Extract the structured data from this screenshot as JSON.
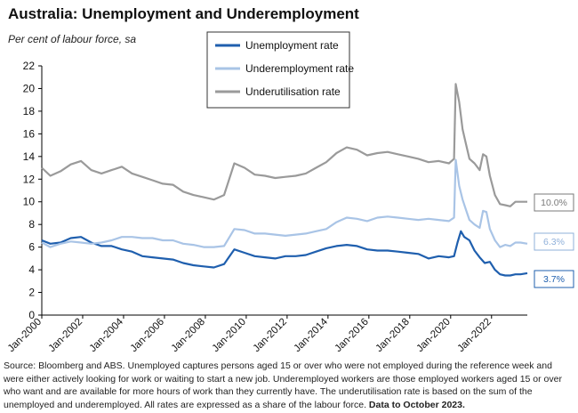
{
  "title": "Australia: Unemployment and Underemployment",
  "subtitle": "Per cent of labour force, sa",
  "source_text": "Source: Bloomberg and ABS. Unemployed captures persons aged 15 or over who were not employed during the reference week and were either actively looking for work or waiting to start a new job.  Underemployed workers are those employed workers aged 15 or over who want and are available for more hours of work than they currently have.  The underutilisation rate is based on the sum of the unemployed and underemployed. All rates are expressed as a share of the labour force.",
  "source_bold": "Data to October 2023.",
  "chart_data": {
    "type": "line",
    "title": "Australia: Unemployment and Underemployment",
    "ylabel": "",
    "xlabel": "",
    "ylim": [
      0,
      22
    ],
    "yticks": [
      0,
      2,
      4,
      6,
      8,
      10,
      12,
      14,
      16,
      18,
      20,
      22
    ],
    "xlim": [
      "2000-01",
      "2023-10"
    ],
    "xticks": [
      "Jan-2000",
      "Jan-2002",
      "Jan-2004",
      "Jan-2006",
      "Jan-2008",
      "Jan-2010",
      "Jan-2012",
      "Jan-2014",
      "Jan-2016",
      "Jan-2018",
      "Jan-2020",
      "Jan-2022"
    ],
    "grid": false,
    "legend_position": "top-center",
    "colors": {
      "unemployment": "#1f5fae",
      "underemployment": "#a9c4e6",
      "underutilisation": "#9a9a9a"
    },
    "end_labels": [
      "10.0%",
      "6.3%",
      "3.7%"
    ],
    "series": [
      {
        "name": "Unemployment rate",
        "color": "#1f5fae",
        "x": [
          "2000-01",
          "2000-06",
          "2000-12",
          "2001-06",
          "2001-12",
          "2002-06",
          "2002-12",
          "2003-06",
          "2003-12",
          "2004-06",
          "2004-12",
          "2005-06",
          "2005-12",
          "2006-06",
          "2006-12",
          "2007-06",
          "2007-12",
          "2008-06",
          "2008-12",
          "2009-06",
          "2009-12",
          "2010-06",
          "2010-12",
          "2011-06",
          "2011-12",
          "2012-06",
          "2012-12",
          "2013-06",
          "2013-12",
          "2014-06",
          "2014-12",
          "2015-06",
          "2015-12",
          "2016-06",
          "2016-12",
          "2017-06",
          "2017-12",
          "2018-06",
          "2018-12",
          "2019-06",
          "2019-12",
          "2020-03",
          "2020-05",
          "2020-07",
          "2020-09",
          "2020-12",
          "2021-03",
          "2021-06",
          "2021-09",
          "2021-12",
          "2022-03",
          "2022-06",
          "2022-09",
          "2022-12",
          "2023-03",
          "2023-06",
          "2023-10"
        ],
        "values": [
          6.6,
          6.3,
          6.4,
          6.8,
          6.9,
          6.4,
          6.1,
          6.1,
          5.8,
          5.6,
          5.2,
          5.1,
          5.0,
          4.9,
          4.6,
          4.4,
          4.3,
          4.2,
          4.5,
          5.8,
          5.5,
          5.2,
          5.1,
          5.0,
          5.2,
          5.2,
          5.3,
          5.6,
          5.9,
          6.1,
          6.2,
          6.1,
          5.8,
          5.7,
          5.7,
          5.6,
          5.5,
          5.4,
          5.0,
          5.2,
          5.1,
          5.2,
          6.4,
          7.4,
          6.9,
          6.6,
          5.7,
          5.1,
          4.6,
          4.7,
          4.0,
          3.6,
          3.5,
          3.5,
          3.6,
          3.6,
          3.7
        ]
      },
      {
        "name": "Underemployment rate",
        "color": "#a9c4e6",
        "x": [
          "2000-01",
          "2000-06",
          "2000-12",
          "2001-06",
          "2001-12",
          "2002-06",
          "2002-12",
          "2003-06",
          "2003-12",
          "2004-06",
          "2004-12",
          "2005-06",
          "2005-12",
          "2006-06",
          "2006-12",
          "2007-06",
          "2007-12",
          "2008-06",
          "2008-12",
          "2009-06",
          "2009-12",
          "2010-06",
          "2010-12",
          "2011-06",
          "2011-12",
          "2012-06",
          "2012-12",
          "2013-06",
          "2013-12",
          "2014-06",
          "2014-12",
          "2015-06",
          "2015-12",
          "2016-06",
          "2016-12",
          "2017-06",
          "2017-12",
          "2018-06",
          "2018-12",
          "2019-06",
          "2019-12",
          "2020-03",
          "2020-04",
          "2020-06",
          "2020-08",
          "2020-10",
          "2020-12",
          "2021-03",
          "2021-06",
          "2021-08",
          "2021-10",
          "2021-12",
          "2022-03",
          "2022-06",
          "2022-09",
          "2022-12",
          "2023-03",
          "2023-06",
          "2023-10"
        ],
        "values": [
          6.4,
          6.0,
          6.3,
          6.5,
          6.4,
          6.3,
          6.4,
          6.6,
          6.9,
          6.9,
          6.8,
          6.8,
          6.6,
          6.6,
          6.3,
          6.2,
          6.0,
          6.0,
          6.1,
          7.6,
          7.5,
          7.2,
          7.2,
          7.1,
          7.0,
          7.1,
          7.2,
          7.4,
          7.6,
          8.2,
          8.6,
          8.5,
          8.3,
          8.6,
          8.7,
          8.6,
          8.5,
          8.4,
          8.5,
          8.4,
          8.3,
          8.6,
          13.7,
          11.4,
          10.2,
          9.3,
          8.4,
          8.0,
          7.7,
          9.2,
          9.1,
          7.6,
          6.6,
          6.0,
          6.2,
          6.1,
          6.4,
          6.4,
          6.3
        ]
      },
      {
        "name": "Underutilisation rate",
        "color": "#9a9a9a",
        "x": [
          "2000-01",
          "2000-06",
          "2000-12",
          "2001-06",
          "2001-12",
          "2002-06",
          "2002-12",
          "2003-06",
          "2003-12",
          "2004-06",
          "2004-12",
          "2005-06",
          "2005-12",
          "2006-06",
          "2006-12",
          "2007-06",
          "2007-12",
          "2008-06",
          "2008-12",
          "2009-06",
          "2009-12",
          "2010-06",
          "2010-12",
          "2011-06",
          "2011-12",
          "2012-06",
          "2012-12",
          "2013-06",
          "2013-12",
          "2014-06",
          "2014-12",
          "2015-06",
          "2015-12",
          "2016-06",
          "2016-12",
          "2017-06",
          "2017-12",
          "2018-06",
          "2018-12",
          "2019-06",
          "2019-12",
          "2020-03",
          "2020-04",
          "2020-06",
          "2020-08",
          "2020-10",
          "2020-12",
          "2021-03",
          "2021-06",
          "2021-08",
          "2021-10",
          "2021-12",
          "2022-03",
          "2022-06",
          "2022-09",
          "2022-12",
          "2023-03",
          "2023-06",
          "2023-10"
        ],
        "values": [
          13.0,
          12.3,
          12.7,
          13.3,
          13.6,
          12.8,
          12.5,
          12.8,
          13.1,
          12.5,
          12.2,
          11.9,
          11.6,
          11.5,
          10.9,
          10.6,
          10.4,
          10.2,
          10.6,
          13.4,
          13.0,
          12.4,
          12.3,
          12.1,
          12.2,
          12.3,
          12.5,
          13.0,
          13.5,
          14.3,
          14.8,
          14.6,
          14.1,
          14.3,
          14.4,
          14.2,
          14.0,
          13.8,
          13.5,
          13.6,
          13.4,
          13.8,
          20.4,
          18.8,
          16.4,
          15.1,
          13.8,
          13.4,
          12.8,
          14.2,
          14.0,
          12.3,
          10.6,
          9.8,
          9.7,
          9.6,
          10.0,
          10.0,
          10.0
        ]
      }
    ]
  }
}
